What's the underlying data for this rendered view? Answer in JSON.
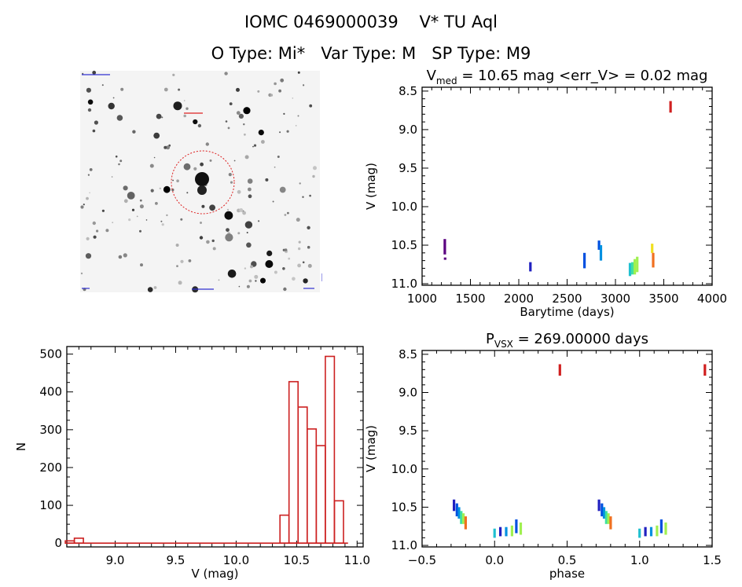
{
  "header": {
    "line1": "IOMC 0469000039    V* TU Aql",
    "line2": "O Type: Mi*   Var Type: M   SP Type: M9"
  },
  "colors": {
    "hist": "#cc2020",
    "circle": "#dd2020",
    "sky_label": "#3030d0",
    "lc_palette": [
      "#5a0080",
      "#2020c0",
      "#0050e0",
      "#0090e0",
      "#20c0d0",
      "#40e0a0",
      "#a0f050",
      "#f0e020",
      "#f07020",
      "#d02020"
    ]
  },
  "chart_data": [
    {
      "type": "scatter",
      "id": "lightcurve",
      "title_main": "V",
      "title_sub": "med",
      "title_rest": " = 10.65 mag <err_V> = 0.02 mag",
      "xlabel": "Barytime (days)",
      "ylabel": "V (mag)",
      "xlim": [
        1000,
        4000
      ],
      "ylim": [
        11.02,
        8.45
      ],
      "xticks": [
        "1000",
        "1500",
        "2000",
        "2500",
        "3000",
        "3500",
        "4000"
      ],
      "yticks": [
        "8.5",
        "9.0",
        "9.5",
        "10.0",
        "10.5",
        "11.0"
      ],
      "series": [
        {
          "x": 1235,
          "y0": 10.42,
          "y1": 10.62,
          "c": 0
        },
        {
          "x": 1238,
          "y0": 10.66,
          "y1": 10.69,
          "c": 0
        },
        {
          "x": 2120,
          "y0": 10.72,
          "y1": 10.84,
          "c": 1
        },
        {
          "x": 2680,
          "y0": 10.6,
          "y1": 10.8,
          "c": 2
        },
        {
          "x": 2830,
          "y0": 10.44,
          "y1": 10.56,
          "c": 2
        },
        {
          "x": 2850,
          "y0": 10.5,
          "y1": 10.7,
          "c": 3
        },
        {
          "x": 3150,
          "y0": 10.73,
          "y1": 10.9,
          "c": 4
        },
        {
          "x": 3175,
          "y0": 10.72,
          "y1": 10.88,
          "c": 5
        },
        {
          "x": 3200,
          "y0": 10.68,
          "y1": 10.88,
          "c": 6
        },
        {
          "x": 3225,
          "y0": 10.65,
          "y1": 10.85,
          "c": 6
        },
        {
          "x": 3380,
          "y0": 10.48,
          "y1": 10.6,
          "c": 7
        },
        {
          "x": 3390,
          "y0": 10.6,
          "y1": 10.79,
          "c": 8
        },
        {
          "x": 3570,
          "y0": 8.63,
          "y1": 8.78,
          "c": 9
        }
      ]
    },
    {
      "type": "bar",
      "id": "histogram",
      "xlabel": "V (mag)",
      "ylabel": "N",
      "xlim": [
        8.6,
        11.05
      ],
      "ylim": [
        -10,
        520
      ],
      "xticks": [
        "9.0",
        "9.5",
        "10.0",
        "10.5",
        "11.0"
      ],
      "yticks": [
        "0",
        "100",
        "200",
        "300",
        "400",
        "500"
      ],
      "bin_width": 0.075,
      "bins": [
        {
          "x": 8.625,
          "n": 6
        },
        {
          "x": 8.7,
          "n": 13
        },
        {
          "x": 10.4,
          "n": 74
        },
        {
          "x": 10.475,
          "n": 427
        },
        {
          "x": 10.55,
          "n": 360
        },
        {
          "x": 10.625,
          "n": 302
        },
        {
          "x": 10.7,
          "n": 258
        },
        {
          "x": 10.775,
          "n": 494
        },
        {
          "x": 10.85,
          "n": 112
        }
      ]
    },
    {
      "type": "scatter",
      "id": "phased",
      "title_main": "P",
      "title_sub": "VSX",
      "title_rest": " = 269.00000 days",
      "xlabel": "phase",
      "ylabel": "V (mag)",
      "xlim": [
        -0.5,
        1.5
      ],
      "ylim": [
        11.02,
        8.45
      ],
      "xticks": [
        "−0.5",
        "0.0",
        "0.5",
        "1.0",
        "1.5"
      ],
      "yticks": [
        "8.5",
        "9.0",
        "9.5",
        "10.0",
        "10.5",
        "11.0"
      ],
      "series": [
        {
          "x": -0.28,
          "y0": 10.4,
          "y1": 10.55,
          "c": 1
        },
        {
          "x": -0.26,
          "y0": 10.45,
          "y1": 10.62,
          "c": 2
        },
        {
          "x": -0.245,
          "y0": 10.5,
          "y1": 10.65,
          "c": 3
        },
        {
          "x": -0.23,
          "y0": 10.55,
          "y1": 10.72,
          "c": 5
        },
        {
          "x": -0.215,
          "y0": 10.58,
          "y1": 10.72,
          "c": 6
        },
        {
          "x": -0.2,
          "y0": 10.62,
          "y1": 10.79,
          "c": 8
        },
        {
          "x": 0.0,
          "y0": 10.78,
          "y1": 10.9,
          "c": 4
        },
        {
          "x": 0.04,
          "y0": 10.76,
          "y1": 10.88,
          "c": 1
        },
        {
          "x": 0.08,
          "y0": 10.76,
          "y1": 10.88,
          "c": 3
        },
        {
          "x": 0.12,
          "y0": 10.74,
          "y1": 10.88,
          "c": 6
        },
        {
          "x": 0.15,
          "y0": 10.66,
          "y1": 10.84,
          "c": 2
        },
        {
          "x": 0.18,
          "y0": 10.7,
          "y1": 10.86,
          "c": 6
        },
        {
          "x": 0.45,
          "y0": 8.63,
          "y1": 8.78,
          "c": 9
        },
        {
          "x": 0.72,
          "y0": 10.4,
          "y1": 10.55,
          "c": 1
        },
        {
          "x": 0.74,
          "y0": 10.45,
          "y1": 10.62,
          "c": 2
        },
        {
          "x": 0.755,
          "y0": 10.5,
          "y1": 10.65,
          "c": 3
        },
        {
          "x": 0.77,
          "y0": 10.55,
          "y1": 10.72,
          "c": 5
        },
        {
          "x": 0.785,
          "y0": 10.58,
          "y1": 10.72,
          "c": 6
        },
        {
          "x": 0.8,
          "y0": 10.62,
          "y1": 10.79,
          "c": 8
        },
        {
          "x": 1.0,
          "y0": 10.78,
          "y1": 10.9,
          "c": 4
        },
        {
          "x": 1.04,
          "y0": 10.76,
          "y1": 10.88,
          "c": 1
        },
        {
          "x": 1.08,
          "y0": 10.76,
          "y1": 10.88,
          "c": 3
        },
        {
          "x": 1.12,
          "y0": 10.74,
          "y1": 10.88,
          "c": 6
        },
        {
          "x": 1.15,
          "y0": 10.66,
          "y1": 10.84,
          "c": 2
        },
        {
          "x": 1.18,
          "y0": 10.7,
          "y1": 10.86,
          "c": 6
        },
        {
          "x": 1.45,
          "y0": 8.63,
          "y1": 8.78,
          "c": 9
        }
      ]
    }
  ]
}
